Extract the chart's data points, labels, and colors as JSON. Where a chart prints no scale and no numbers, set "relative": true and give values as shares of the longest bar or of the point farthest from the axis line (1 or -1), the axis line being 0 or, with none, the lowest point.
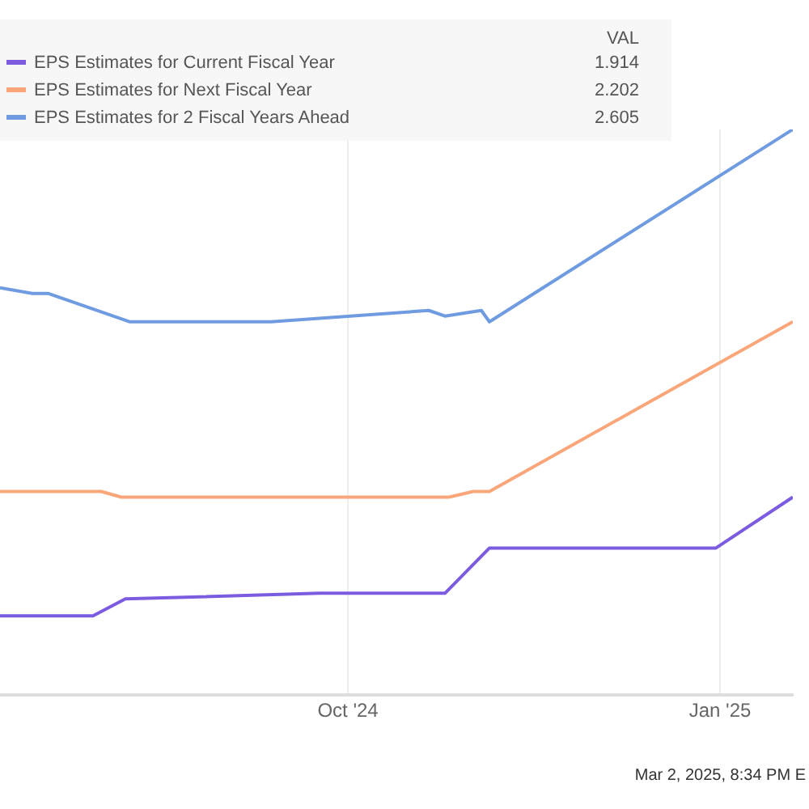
{
  "chart_data": {
    "type": "line",
    "relative": true,
    "legend": "top left",
    "legend_title": "VAL",
    "grid": "x",
    "marker": "none",
    "line_style": "solid",
    "xlim": [
      "2024-07-07",
      "2025-01-19"
    ],
    "xticks": [
      {
        "value": "2024-10-01",
        "label": "Oct '24"
      },
      {
        "value": "2025-01-01",
        "label": "Jan '25"
      }
    ],
    "annotations": [
      "1.914",
      "2.202",
      "2.605",
      "Mar 2, 2025, 8:34 PM E"
    ],
    "series": [
      {
        "name": "EPS Estimates for Current Fiscal Year",
        "color": "#7b5ce0",
        "x": [
          "2024-07-07",
          "2024-07-30",
          "2024-08-07",
          "2024-09-24",
          "2024-10-25",
          "2024-11-05",
          "2024-12-31",
          "2025-01-19"
        ],
        "values": [
          0.14,
          0.14,
          0.17,
          0.18,
          0.18,
          0.26,
          0.26,
          0.35
        ]
      },
      {
        "name": "EPS Estimates for Next Fiscal Year",
        "color": "#f9a77a",
        "x": [
          "2024-07-07",
          "2024-08-01",
          "2024-08-06",
          "2024-10-02",
          "2024-10-22",
          "2024-10-26",
          "2024-11-01",
          "2024-11-05",
          "2025-01-19"
        ],
        "values": [
          0.36,
          0.36,
          0.35,
          0.35,
          0.35,
          0.35,
          0.36,
          0.36,
          0.66
        ]
      },
      {
        "name": "EPS Estimates for 2 Fiscal Years Ahead",
        "color": "#6f9be0",
        "x": [
          "2024-07-07",
          "2024-07-15",
          "2024-07-19",
          "2024-08-08",
          "2024-09-12",
          "2024-10-21",
          "2024-10-25",
          "2024-11-03",
          "2024-11-05",
          "2025-01-19"
        ],
        "values": [
          0.72,
          0.71,
          0.71,
          0.66,
          0.66,
          0.68,
          0.67,
          0.68,
          0.66,
          1
        ]
      }
    ]
  }
}
